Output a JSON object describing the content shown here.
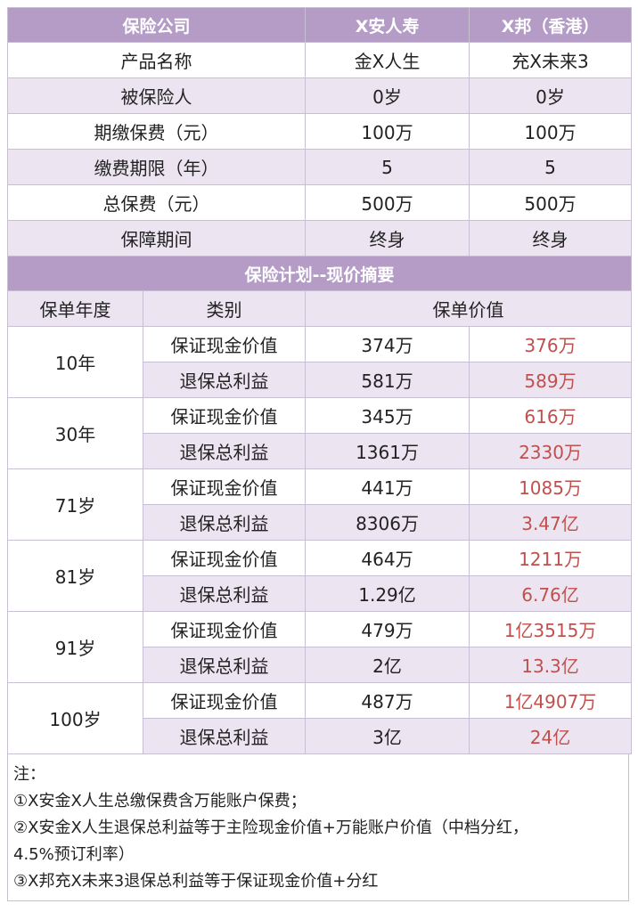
{
  "header": {
    "company_label": "保险公司",
    "company_a": "X安人寿",
    "company_b": "X邦（香港）"
  },
  "info_rows": [
    {
      "label": "产品名称",
      "a": "金X人生",
      "b": "充X未来3"
    },
    {
      "label": "被保险人",
      "a": "0岁",
      "b": "0岁"
    },
    {
      "label": "期缴保费（元）",
      "a": "100万",
      "b": "100万"
    },
    {
      "label": "缴费期限（年）",
      "a": "5",
      "b": "5"
    },
    {
      "label": "总保费（元）",
      "a": "500万",
      "b": "500万"
    },
    {
      "label": "保障期间",
      "a": "终身",
      "b": "终身"
    }
  ],
  "section_title": "保险计划--现价摘要",
  "col_headers": {
    "year": "保单年度",
    "category": "类别",
    "value": "保单价值"
  },
  "groups": [
    {
      "year": "10年",
      "rows": [
        {
          "category": "保证现金价值",
          "a": "374万",
          "b": "376万"
        },
        {
          "category": "退保总利益",
          "a": "581万",
          "b": "589万"
        }
      ]
    },
    {
      "year": "30年",
      "rows": [
        {
          "category": "保证现金价值",
          "a": "345万",
          "b": "616万"
        },
        {
          "category": "退保总利益",
          "a": "1361万",
          "b": "2330万"
        }
      ]
    },
    {
      "year": "71岁",
      "rows": [
        {
          "category": "保证现金价值",
          "a": "441万",
          "b": "1085万"
        },
        {
          "category": "退保总利益",
          "a": "8306万",
          "b": "3.47亿"
        }
      ]
    },
    {
      "year": "81岁",
      "rows": [
        {
          "category": "保证现金价值",
          "a": "464万",
          "b": "1211万"
        },
        {
          "category": "退保总利益",
          "a": "1.29亿",
          "b": "6.76亿"
        }
      ]
    },
    {
      "year": "91岁",
      "rows": [
        {
          "category": "保证现金价值",
          "a": "479万",
          "b": "1亿3515万"
        },
        {
          "category": "退保总利益",
          "a": "2亿",
          "b": "13.3亿"
        }
      ]
    },
    {
      "year": "100岁",
      "rows": [
        {
          "category": "保证现金价值",
          "a": "487万",
          "b": "1亿4907万"
        },
        {
          "category": "退保总利益",
          "a": "3亿",
          "b": "24亿"
        }
      ]
    }
  ],
  "notes": {
    "title": "注：",
    "lines": [
      "①X安金X人生总缴保费含万能账户保费；",
      "②X安金X人生退保总利益等于主险现金价值+万能账户价值（中档分红，",
      "4.5%预订利率）",
      "③X邦充X未来3退保总利益等于保证现金价值+分红"
    ]
  }
}
